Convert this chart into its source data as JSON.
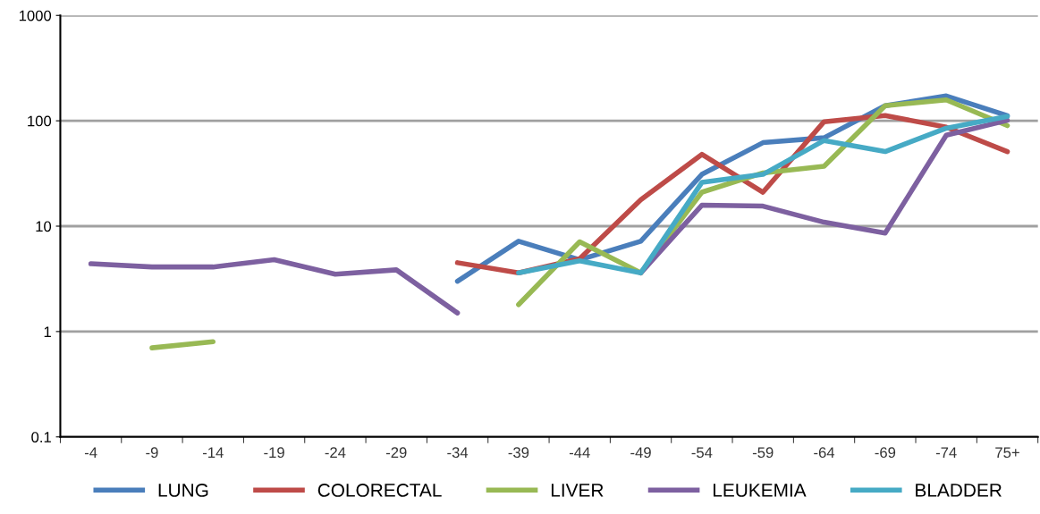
{
  "chart_data": {
    "type": "line",
    "categories": [
      "-4",
      "-9",
      "-14",
      "-19",
      "-24",
      "-29",
      "-34",
      "-39",
      "-44",
      "-49",
      "-54",
      "-59",
      "-64",
      "-69",
      "-74",
      "75+"
    ],
    "series": [
      {
        "name": "LUNG",
        "color": "#4a7ebb",
        "values": [
          null,
          null,
          null,
          null,
          null,
          null,
          3.0,
          7.2,
          4.8,
          7.2,
          31,
          62,
          69,
          139,
          172,
          112
        ]
      },
      {
        "name": "COLORECTAL",
        "color": "#be4b48",
        "values": [
          null,
          null,
          null,
          null,
          null,
          null,
          4.5,
          3.6,
          4.9,
          17.8,
          48,
          21,
          98,
          112,
          87,
          51
        ]
      },
      {
        "name": "LIVER",
        "color": "#98b954",
        "values": [
          null,
          0.7,
          0.8,
          null,
          null,
          null,
          null,
          1.8,
          7.1,
          3.6,
          21,
          32,
          37,
          139,
          158,
          90
        ]
      },
      {
        "name": "LEUKEMIA",
        "color": "#7d60a0",
        "values": [
          4.4,
          4.1,
          4.1,
          4.8,
          3.5,
          3.85,
          1.5,
          null,
          null,
          3.6,
          15.8,
          15.5,
          10.9,
          8.6,
          73,
          101
        ]
      },
      {
        "name": "BLADDER",
        "color": "#46aac5",
        "values": [
          null,
          null,
          null,
          null,
          null,
          null,
          null,
          3.6,
          4.7,
          3.6,
          26,
          31,
          65,
          51,
          85,
          110
        ]
      }
    ],
    "log": "y",
    "ylim": [
      0.1,
      1000
    ],
    "yticks": [
      0.1,
      1,
      10,
      100,
      1000
    ],
    "grid": "y",
    "legend": "bottom",
    "marker": "none",
    "line_style": "solid"
  }
}
